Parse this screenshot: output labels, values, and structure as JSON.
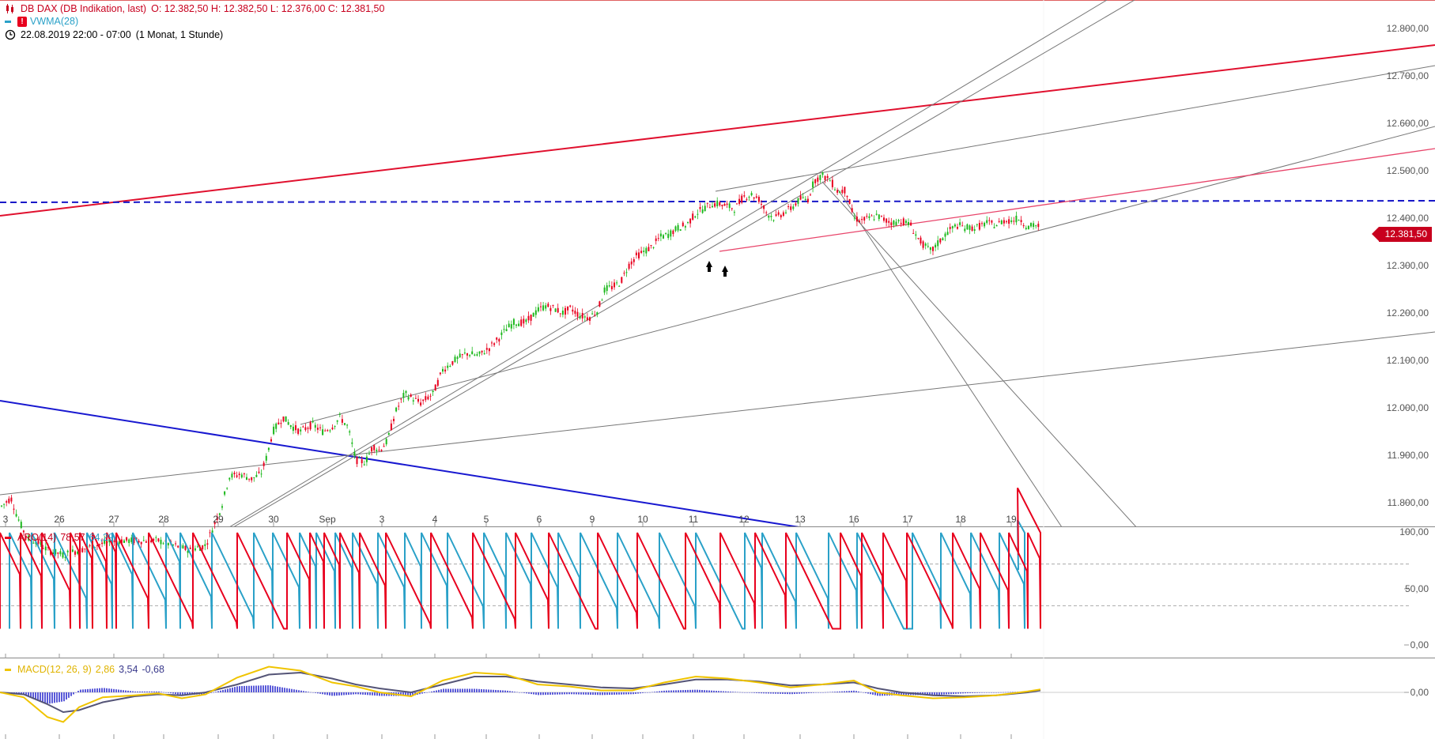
{
  "header": {
    "instrument": "DB DAX (DB Indikation, last)",
    "ohlc": "O: 12.382,50  H: 12.382,50  L: 12.376,00  C: 12.381,50",
    "overlay_label": "VWMA(28)",
    "overlay_badge": "!",
    "period": "22.08.2019 22:00 - 07:00",
    "range": "(1 Monat, 1 Stunde)"
  },
  "last_price_label": "12.381,50",
  "colors": {
    "up": "#1cb81c",
    "down": "#e8001e",
    "aroon_up": "#e8001e",
    "aroon_down": "#2aa1c8",
    "macd": "#f0c400",
    "signal": "#555577",
    "histogram": "#5a5ad8",
    "red_trend": "#e0102e",
    "blue_trend": "#1818d0"
  },
  "indicators": {
    "aroon": {
      "label": "ARO(14)",
      "up_value": "78,57",
      "down_value": "64,29"
    },
    "macd": {
      "label": "MACD(12, 26, 9)",
      "macd_value": "2,86",
      "signal_value": "3,54",
      "hist_value": "-0,68"
    }
  },
  "chart_data": [
    {
      "type": "candlestick",
      "title": "DB DAX (DB Indikation, last)",
      "x_tick_labels": [
        "3",
        "26",
        "27",
        "28",
        "29",
        "30",
        "Sep",
        "3",
        "4",
        "5",
        "6",
        "9",
        "10",
        "11",
        "12",
        "13",
        "16",
        "17",
        "18",
        "19"
      ],
      "y_ticks": [
        "12.800,00",
        "12.700,00",
        "12.600,00",
        "12.500,00",
        "12.400,00",
        "12.300,00",
        "12.200,00",
        "12.100,00",
        "12.000,00",
        "11.900,00",
        "11.800,00"
      ],
      "ylim": [
        11750,
        12860
      ],
      "last_price": 12381.5,
      "horizontal_line": 12455,
      "path_points": [
        [
          0,
          11790
        ],
        [
          14,
          11810
        ],
        [
          22,
          11770
        ],
        [
          30,
          11740
        ],
        [
          38,
          11720
        ],
        [
          46,
          11720
        ],
        [
          60,
          11700
        ],
        [
          80,
          11690
        ],
        [
          120,
          11710
        ],
        [
          150,
          11720
        ],
        [
          175,
          11720
        ],
        [
          200,
          11720
        ],
        [
          240,
          11700
        ],
        [
          260,
          11710
        ],
        [
          280,
          11790
        ],
        [
          290,
          11855
        ],
        [
          305,
          11860
        ],
        [
          318,
          11850
        ],
        [
          330,
          11860
        ],
        [
          338,
          11900
        ],
        [
          345,
          11950
        ],
        [
          358,
          11980
        ],
        [
          370,
          11960
        ],
        [
          380,
          11950
        ],
        [
          395,
          11965
        ],
        [
          408,
          11950
        ],
        [
          420,
          11960
        ],
        [
          430,
          11980
        ],
        [
          440,
          11960
        ],
        [
          450,
          11890
        ],
        [
          462,
          11885
        ],
        [
          472,
          11920
        ],
        [
          480,
          11910
        ],
        [
          490,
          11930
        ],
        [
          500,
          11990
        ],
        [
          512,
          12030
        ],
        [
          522,
          12020
        ],
        [
          532,
          12010
        ],
        [
          548,
          12030
        ],
        [
          560,
          12080
        ],
        [
          575,
          12100
        ],
        [
          590,
          12115
        ],
        [
          605,
          12110
        ],
        [
          618,
          12125
        ],
        [
          630,
          12145
        ],
        [
          640,
          12165
        ],
        [
          650,
          12180
        ],
        [
          665,
          12180
        ],
        [
          680,
          12205
        ],
        [
          690,
          12215
        ],
        [
          700,
          12210
        ],
        [
          712,
          12200
        ],
        [
          722,
          12210
        ],
        [
          733,
          12195
        ],
        [
          745,
          12190
        ],
        [
          756,
          12205
        ],
        [
          765,
          12250
        ],
        [
          775,
          12255
        ],
        [
          785,
          12265
        ],
        [
          795,
          12300
        ],
        [
          805,
          12320
        ],
        [
          815,
          12330
        ],
        [
          825,
          12340
        ],
        [
          835,
          12360
        ],
        [
          845,
          12365
        ],
        [
          858,
          12380
        ],
        [
          868,
          12385
        ],
        [
          880,
          12410
        ],
        [
          890,
          12420
        ],
        [
          900,
          12430
        ],
        [
          910,
          12430
        ],
        [
          920,
          12425
        ],
        [
          930,
          12420
        ],
        [
          940,
          12445
        ],
        [
          950,
          12450
        ],
        [
          960,
          12440
        ],
        [
          970,
          12410
        ],
        [
          980,
          12400
        ],
        [
          990,
          12410
        ],
        [
          1000,
          12420
        ],
        [
          1012,
          12440
        ],
        [
          1022,
          12440
        ],
        [
          1030,
          12480
        ],
        [
          1040,
          12490
        ],
        [
          1050,
          12480
        ],
        [
          1060,
          12455
        ],
        [
          1070,
          12460
        ],
        [
          1080,
          12400
        ],
        [
          1090,
          12395
        ],
        [
          1100,
          12400
        ],
        [
          1110,
          12405
        ],
        [
          1120,
          12395
        ],
        [
          1130,
          12390
        ],
        [
          1140,
          12395
        ],
        [
          1152,
          12385
        ],
        [
          1160,
          12360
        ],
        [
          1170,
          12340
        ],
        [
          1178,
          12330
        ],
        [
          1188,
          12350
        ],
        [
          1198,
          12370
        ],
        [
          1210,
          12385
        ],
        [
          1222,
          12380
        ],
        [
          1235,
          12380
        ],
        [
          1248,
          12390
        ],
        [
          1260,
          12385
        ],
        [
          1270,
          12395
        ],
        [
          1280,
          12395
        ],
        [
          1290,
          12400
        ],
        [
          1300,
          12380
        ],
        [
          1308,
          12385
        ],
        [
          1316,
          12382
        ],
        [
          1322,
          12382
        ],
        [
          1290,
          12380
        ],
        [
          1290,
          12380
        ]
      ]
    },
    {
      "type": "line",
      "title": "ARO(14)",
      "y_ticks": [
        "100,00",
        "50,00",
        "0,00"
      ],
      "ylim": [
        0,
        100
      ],
      "dashed_levels": [
        70,
        30
      ],
      "series": [
        {
          "name": "ARO(14)",
          "role": "up",
          "last": 78.57
        },
        {
          "name": "",
          "role": "down",
          "last": 64.29
        }
      ],
      "cycle_starts_up": [
        0,
        26,
        53,
        89,
        101,
        117,
        135,
        147,
        188,
        244,
        300,
        363,
        392,
        410,
        430,
        455,
        488,
        545,
        598,
        652,
        694,
        756,
        806,
        867,
        911,
        955,
        994,
        1063,
        1090,
        1117,
        1147,
        1205,
        1240,
        1276,
        1300,
        1316
      ],
      "cycle_starts_down": [
        12,
        40,
        69,
        110,
        142,
        168,
        210,
        228,
        268,
        321,
        345,
        379,
        400,
        424,
        446,
        478,
        512,
        533,
        566,
        612,
        640,
        672,
        706,
        734,
        781,
        834,
        880,
        942,
        964,
        1007,
        1048,
        1084,
        1154,
        1190,
        1228,
        1264,
        1296
      ]
    },
    {
      "type": "line",
      "title": "MACD(12, 26, 9)",
      "y_ticks": [
        "0,00"
      ],
      "series": [
        {
          "name": "MACD(12, 26, 9)",
          "last": 2.86
        },
        {
          "name": "",
          "role": "signal",
          "last": 3.54
        },
        {
          "name": "",
          "role": "histogram",
          "last": -0.68
        }
      ],
      "macd_points": [
        [
          0,
          0
        ],
        [
          30,
          -5
        ],
        [
          60,
          -25
        ],
        [
          80,
          -30
        ],
        [
          100,
          -15
        ],
        [
          130,
          -5
        ],
        [
          170,
          -3
        ],
        [
          200,
          -1
        ],
        [
          230,
          -6
        ],
        [
          260,
          -2
        ],
        [
          300,
          15
        ],
        [
          340,
          26
        ],
        [
          380,
          22
        ],
        [
          420,
          10
        ],
        [
          450,
          6
        ],
        [
          480,
          0
        ],
        [
          520,
          -4
        ],
        [
          560,
          12
        ],
        [
          600,
          20
        ],
        [
          640,
          18
        ],
        [
          680,
          8
        ],
        [
          720,
          6
        ],
        [
          760,
          2
        ],
        [
          800,
          2
        ],
        [
          840,
          10
        ],
        [
          880,
          16
        ],
        [
          920,
          14
        ],
        [
          960,
          10
        ],
        [
          1000,
          5
        ],
        [
          1040,
          8
        ],
        [
          1080,
          12
        ],
        [
          1110,
          0
        ],
        [
          1140,
          -3
        ],
        [
          1180,
          -6
        ],
        [
          1220,
          -5
        ],
        [
          1260,
          -3
        ],
        [
          1300,
          1
        ],
        [
          1316,
          3
        ]
      ],
      "signal_points": [
        [
          0,
          0
        ],
        [
          30,
          -2
        ],
        [
          60,
          -12
        ],
        [
          80,
          -20
        ],
        [
          100,
          -18
        ],
        [
          130,
          -10
        ],
        [
          170,
          -4
        ],
        [
          200,
          -2
        ],
        [
          230,
          -3
        ],
        [
          260,
          0
        ],
        [
          300,
          8
        ],
        [
          340,
          18
        ],
        [
          380,
          20
        ],
        [
          420,
          14
        ],
        [
          450,
          8
        ],
        [
          480,
          4
        ],
        [
          520,
          0
        ],
        [
          560,
          8
        ],
        [
          600,
          16
        ],
        [
          640,
          16
        ],
        [
          680,
          11
        ],
        [
          720,
          8
        ],
        [
          760,
          5
        ],
        [
          800,
          4
        ],
        [
          840,
          8
        ],
        [
          880,
          13
        ],
        [
          920,
          13
        ],
        [
          960,
          11
        ],
        [
          1000,
          7
        ],
        [
          1040,
          8
        ],
        [
          1080,
          10
        ],
        [
          1110,
          4
        ],
        [
          1140,
          0
        ],
        [
          1180,
          -3
        ],
        [
          1220,
          -4
        ],
        [
          1260,
          -3
        ],
        [
          1300,
          0
        ],
        [
          1316,
          2
        ]
      ]
    }
  ]
}
